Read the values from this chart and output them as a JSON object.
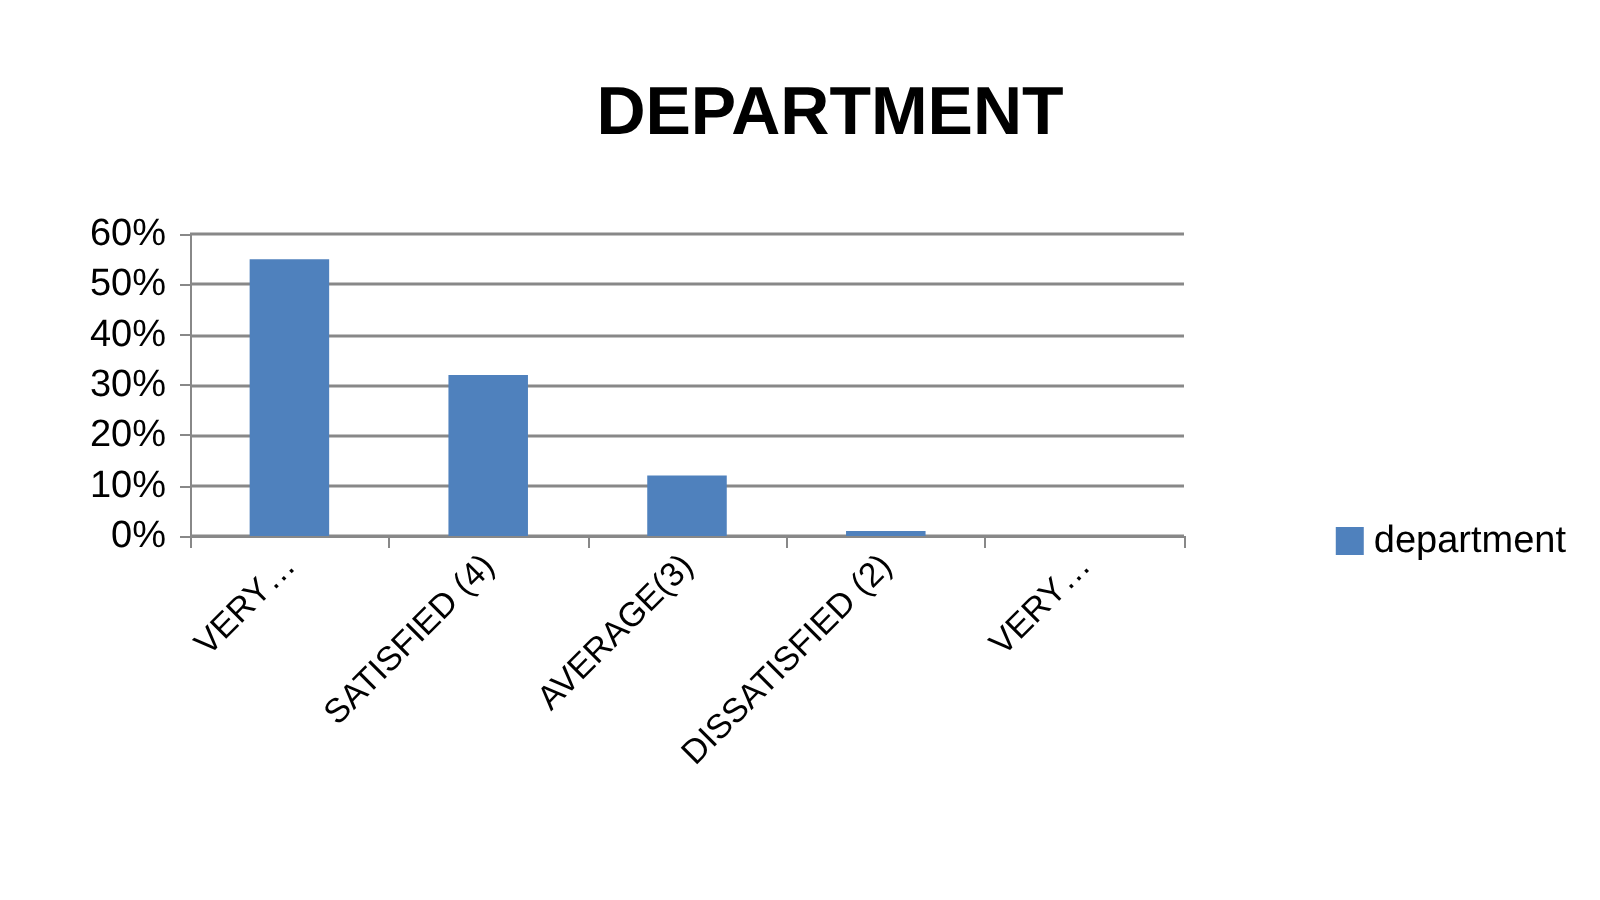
{
  "chart_data": {
    "type": "bar",
    "title": "DEPARTMENT",
    "categories": [
      "VERY…",
      "SATISFIED (4)",
      "AVERAGE(3)",
      "DISSATISFIED (2)",
      "VERY…"
    ],
    "series": [
      {
        "name": "department",
        "color": "#4f81bd",
        "values": [
          55,
          32,
          12,
          1,
          0
        ]
      }
    ],
    "ylim": [
      0,
      60
    ],
    "yticks": [
      {
        "value": 0,
        "label": "0%"
      },
      {
        "value": 10,
        "label": "10%"
      },
      {
        "value": 20,
        "label": "20%"
      },
      {
        "value": 30,
        "label": "30%"
      },
      {
        "value": 40,
        "label": "40%"
      },
      {
        "value": 50,
        "label": "50%"
      },
      {
        "value": 60,
        "label": "60%"
      }
    ],
    "grid": true,
    "legend": "right"
  }
}
